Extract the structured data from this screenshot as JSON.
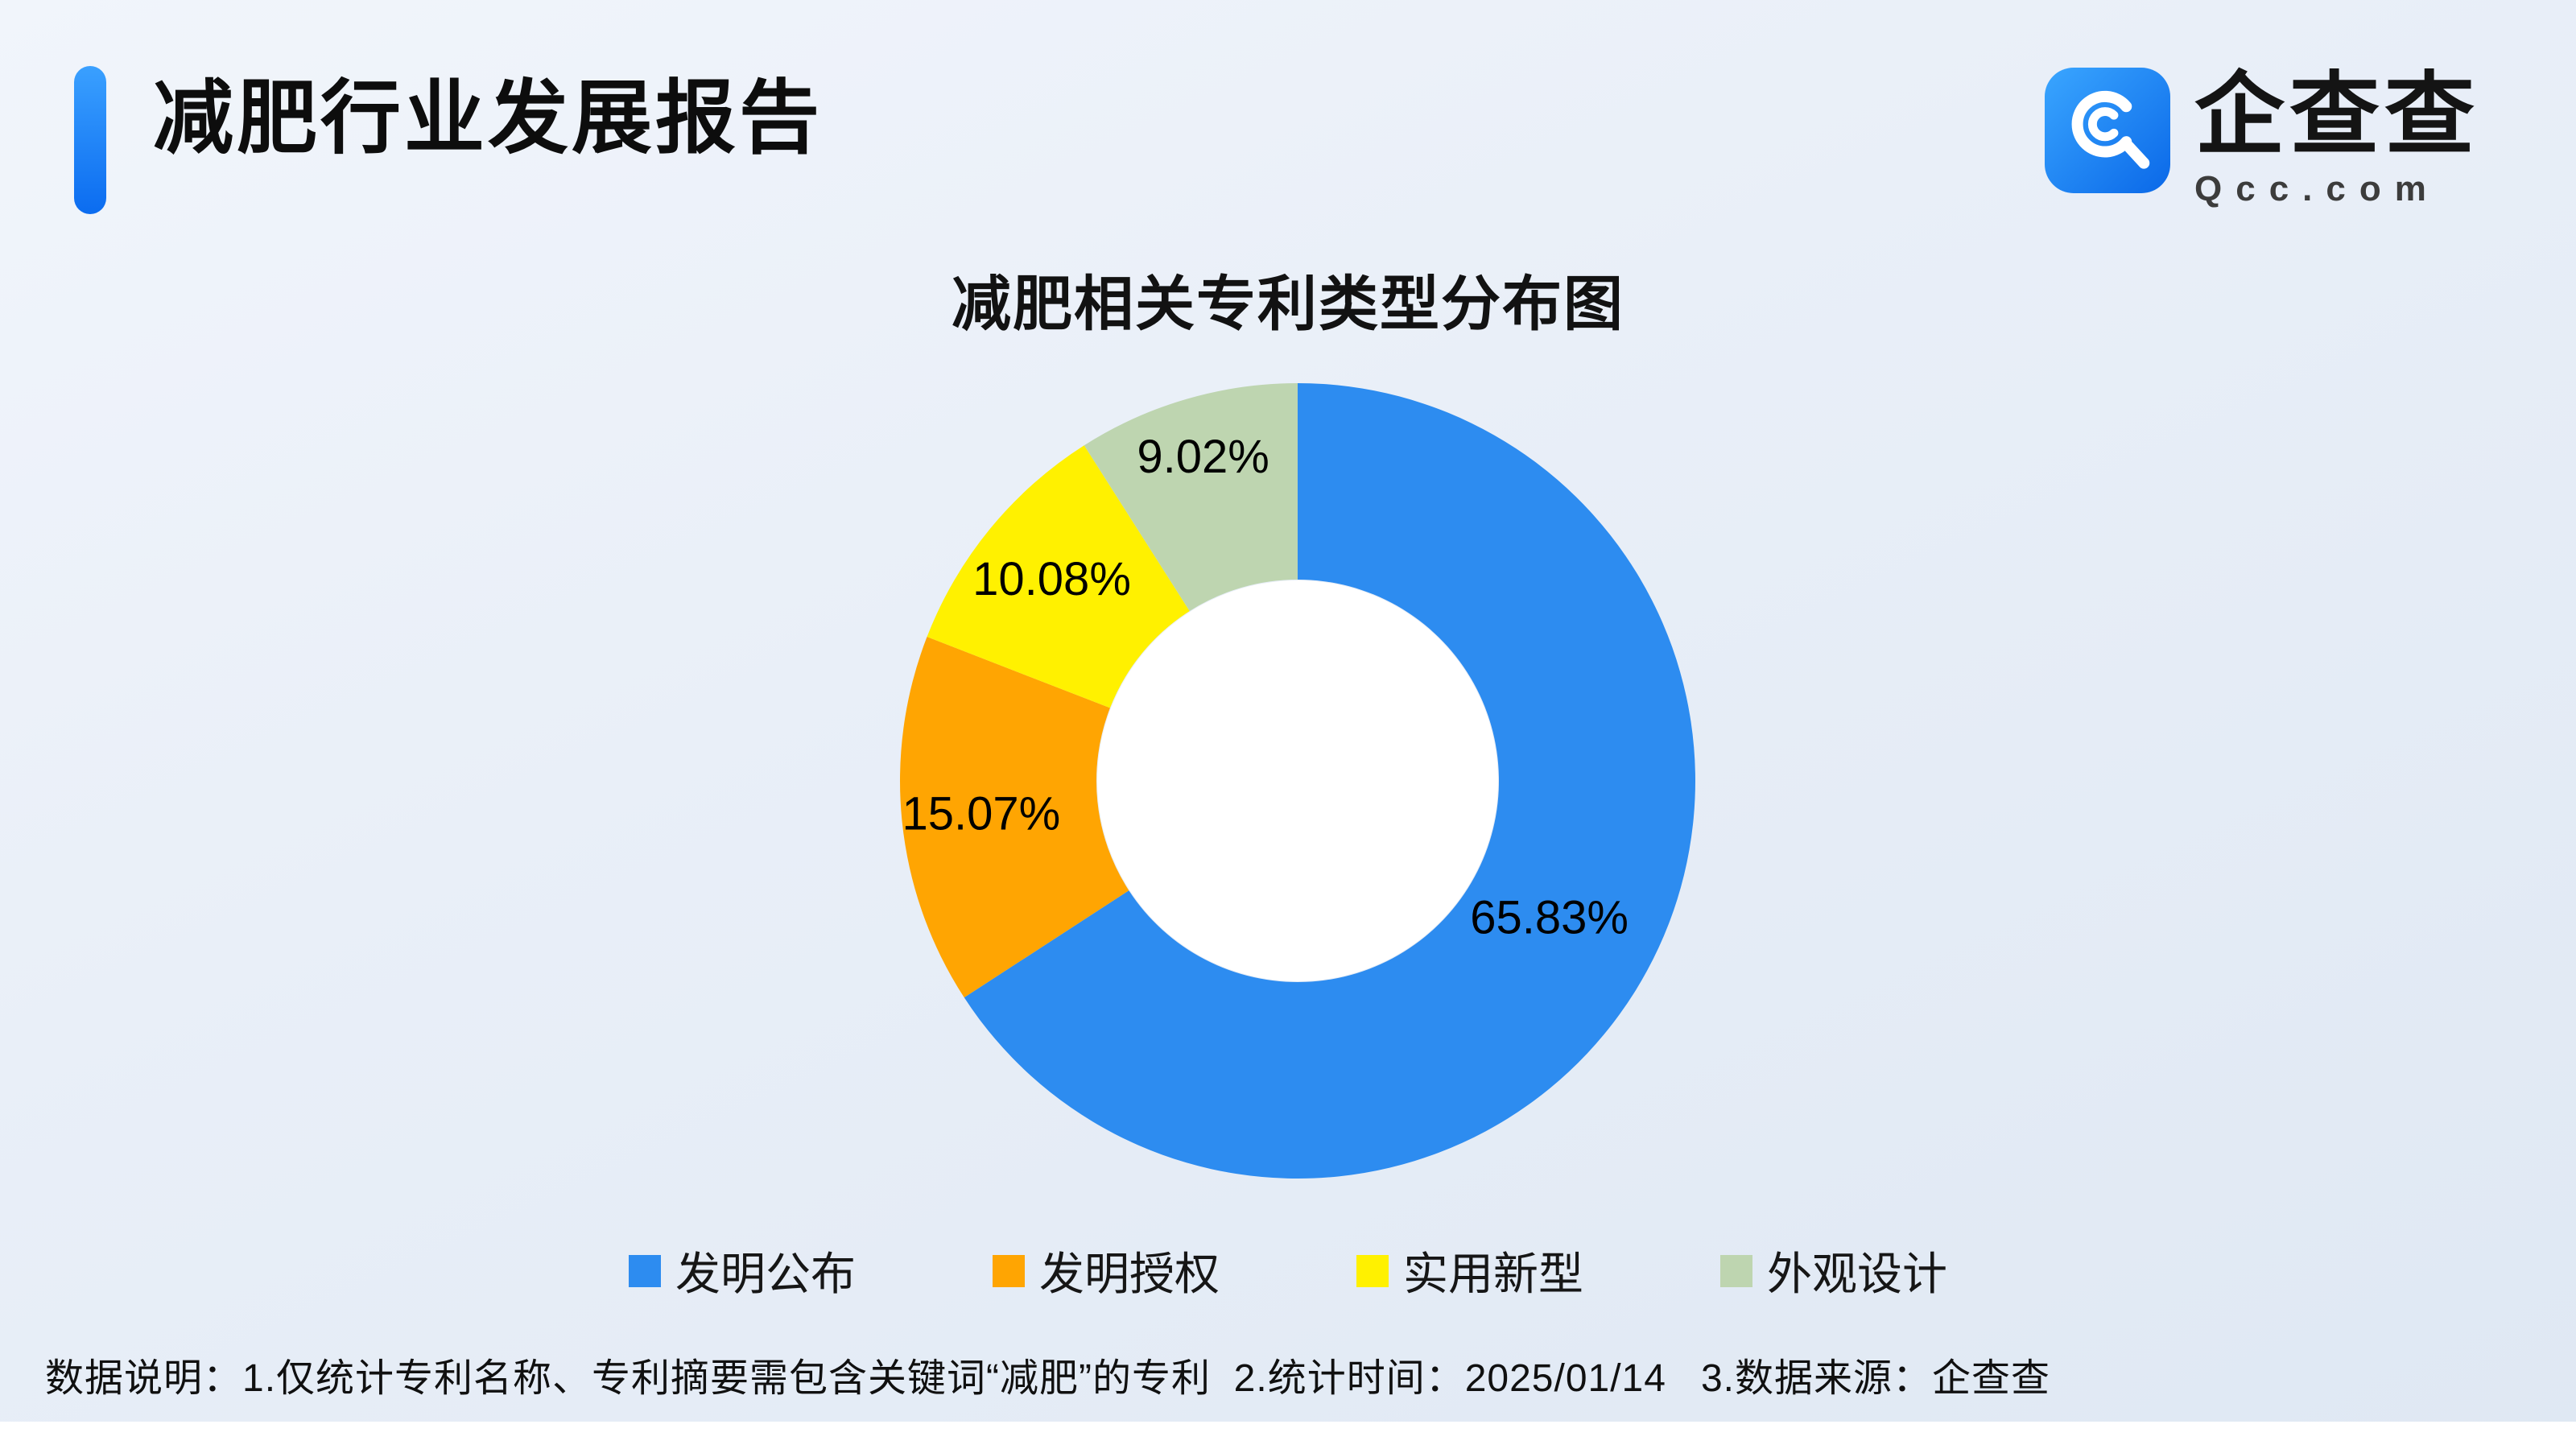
{
  "page": {
    "report_title": "减肥行业发展报告",
    "footnote": "数据说明：1.仅统计专利名称、专利摘要需包含关键词“减肥”的专利  2.统计时间：2025/01/14   3.数据来源：企查查"
  },
  "brand": {
    "name": "企查查",
    "domain": "Qcc.com"
  },
  "chart_data": {
    "type": "pie",
    "title": "减肥相关专利类型分布图",
    "donut": true,
    "inner_radius_ratio": 0.5,
    "start_angle": "top",
    "direction": "clockwise",
    "legend_position": "bottom",
    "value_unit": "%",
    "segments": [
      {
        "label": "发明公布",
        "value": 65.83,
        "display": "65.83%",
        "color": "#2D8CF0",
        "label_radius": 0.72
      },
      {
        "label": "发明授权",
        "value": 15.07,
        "display": "15.07%",
        "color": "#FFA502",
        "label_radius": 0.8
      },
      {
        "label": "实用新型",
        "value": 10.08,
        "display": "10.08%",
        "color": "#FFF100",
        "label_radius": 0.8
      },
      {
        "label": "外观设计",
        "value": 9.02,
        "display": "9.02%",
        "color": "#BED5B0",
        "label_radius": 0.85
      }
    ]
  }
}
